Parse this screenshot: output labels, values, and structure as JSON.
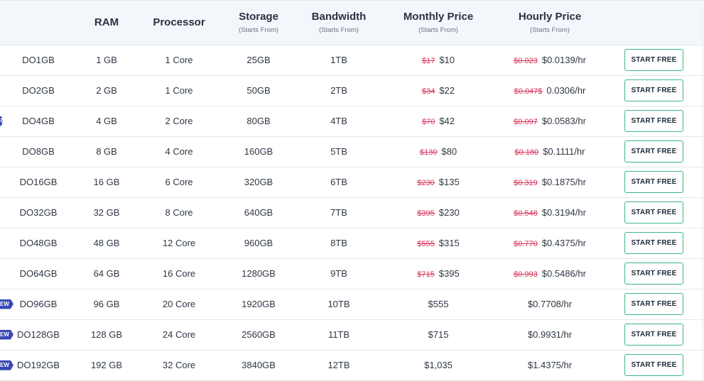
{
  "headers": [
    {
      "label": "",
      "sub": ""
    },
    {
      "label": "RAM",
      "sub": ""
    },
    {
      "label": "Processor",
      "sub": ""
    },
    {
      "label": "Storage",
      "sub": "(Starts From)"
    },
    {
      "label": "Bandwidth",
      "sub": "(Starts From)"
    },
    {
      "label": "Monthly Price",
      "sub": "(Starts From)"
    },
    {
      "label": "Hourly Price",
      "sub": "(Starts From)"
    },
    {
      "label": "",
      "sub": ""
    }
  ],
  "rows": [
    {
      "name": "DO1GB",
      "badge": "",
      "ram": "1 GB",
      "cpu": "1 Core",
      "storage": "25GB",
      "bandwidth": "1TB",
      "monthly_old": "$17",
      "monthly": "$10",
      "hourly_old": "$0.023",
      "hourly": "$0.0139/hr",
      "button": "START FREE"
    },
    {
      "name": "DO2GB",
      "badge": "",
      "ram": "2 GB",
      "cpu": "1 Core",
      "storage": "50GB",
      "bandwidth": "2TB",
      "monthly_old": "$34",
      "monthly": "$22",
      "hourly_old": "$0.047$",
      "hourly": "0.0306/hr",
      "button": "START FREE"
    },
    {
      "name": "DO4GB",
      "badge": "R",
      "ram": "4 GB",
      "cpu": "2 Core",
      "storage": "80GB",
      "bandwidth": "4TB",
      "monthly_old": "$70",
      "monthly": "$42",
      "hourly_old": "$0.097",
      "hourly": "$0.0583/hr",
      "button": "START FREE"
    },
    {
      "name": "DO8GB",
      "badge": "",
      "ram": "8 GB",
      "cpu": "4 Core",
      "storage": "160GB",
      "bandwidth": "5TB",
      "monthly_old": "$130",
      "monthly": "$80",
      "hourly_old": "$0.180",
      "hourly": "$0.1111/hr",
      "button": "START FREE"
    },
    {
      "name": "DO16GB",
      "badge": "",
      "ram": "16 GB",
      "cpu": "6 Core",
      "storage": "320GB",
      "bandwidth": "6TB",
      "monthly_old": "$230",
      "monthly": "$135",
      "hourly_old": "$0.319",
      "hourly": "$0.1875/hr",
      "button": "START FREE"
    },
    {
      "name": "DO32GB",
      "badge": "",
      "ram": "32 GB",
      "cpu": "8 Core",
      "storage": "640GB",
      "bandwidth": "7TB",
      "monthly_old": "$395",
      "monthly": "$230",
      "hourly_old": "$0.548",
      "hourly": "$0.3194/hr",
      "button": "START FREE"
    },
    {
      "name": "DO48GB",
      "badge": "",
      "ram": "48 GB",
      "cpu": "12 Core",
      "storage": "960GB",
      "bandwidth": "8TB",
      "monthly_old": "$555",
      "monthly": "$315",
      "hourly_old": "$0.770",
      "hourly": "$0.4375/hr",
      "button": "START FREE"
    },
    {
      "name": "DO64GB",
      "badge": "",
      "ram": "64 GB",
      "cpu": "16 Core",
      "storage": "1280GB",
      "bandwidth": "9TB",
      "monthly_old": "$715",
      "monthly": "$395",
      "hourly_old": "$0.993",
      "hourly": "$0.5486/hr",
      "button": "START FREE"
    },
    {
      "name": "DO96GB",
      "badge": "EW",
      "ram": "96 GB",
      "cpu": "20 Core",
      "storage": "1920GB",
      "bandwidth": "10TB",
      "monthly_old": "",
      "monthly": "$555",
      "hourly_old": "",
      "hourly": "$0.7708/hr",
      "button": "START FREE"
    },
    {
      "name": "DO128GB",
      "badge": "EW",
      "ram": "128 GB",
      "cpu": "24 Core",
      "storage": "2560GB",
      "bandwidth": "11TB",
      "monthly_old": "",
      "monthly": "$715",
      "hourly_old": "",
      "hourly": "$0.9931/hr",
      "button": "START FREE"
    },
    {
      "name": "DO192GB",
      "badge": "EW",
      "ram": "192 GB",
      "cpu": "32 Core",
      "storage": "3840GB",
      "bandwidth": "12TB",
      "monthly_old": "",
      "monthly": "$1,035",
      "hourly_old": "",
      "hourly": "$1.4375/hr",
      "button": "START FREE"
    }
  ]
}
